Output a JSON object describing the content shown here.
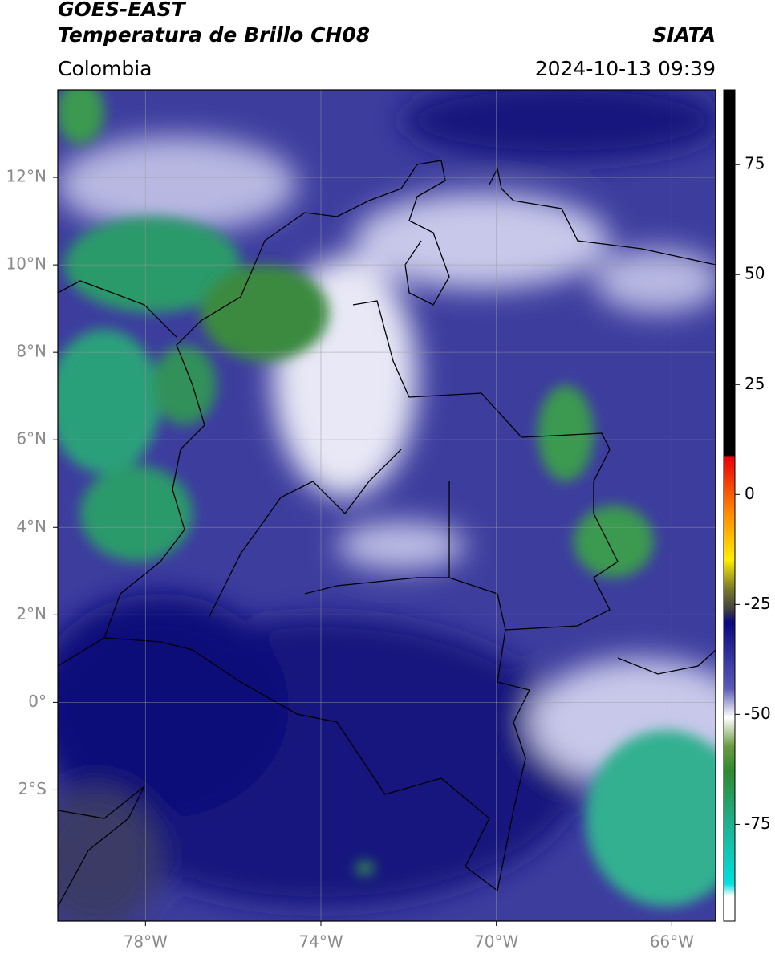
{
  "header": {
    "title": "GOES-EAST",
    "subtitle": "Temperatura de Brillo CH08",
    "source": "SIATA",
    "region": "Colombia",
    "datetime": "2024-10-13 09:39"
  },
  "map": {
    "lon_range": [
      -80,
      -65
    ],
    "lat_range": [
      -5,
      14
    ],
    "grid": true,
    "lon_ticks": [
      {
        "value": -78,
        "label": "78°W"
      },
      {
        "value": -74,
        "label": "74°W"
      },
      {
        "value": -70,
        "label": "70°W"
      },
      {
        "value": -66,
        "label": "66°W"
      }
    ],
    "lat_ticks": [
      {
        "value": 12,
        "label": "12°N"
      },
      {
        "value": 10,
        "label": "10°N"
      },
      {
        "value": 8,
        "label": "8°N"
      },
      {
        "value": 6,
        "label": "6°N"
      },
      {
        "value": 4,
        "label": "4°N"
      },
      {
        "value": 2,
        "label": "2°N"
      },
      {
        "value": 0,
        "label": "0°"
      },
      {
        "value": -2,
        "label": "2°S"
      }
    ]
  },
  "colorbar": {
    "range": [
      -97,
      92
    ],
    "ticks": [
      75,
      50,
      25,
      0,
      -25,
      -50,
      -75
    ]
  }
}
